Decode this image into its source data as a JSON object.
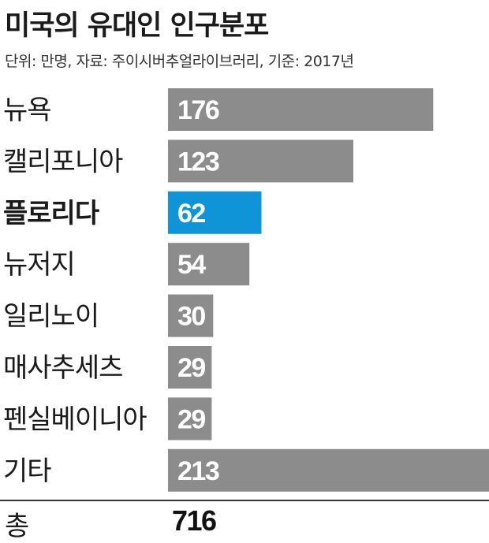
{
  "chart_data": {
    "type": "bar",
    "orientation": "horizontal",
    "title": "미국의 유대인 인구분포",
    "subtitle": "단위: 만명, 자료: 주이시버추얼라이브러리, 기준: 2017년",
    "categories": [
      "뉴욕",
      "캘리포니아",
      "플로리다",
      "뉴저지",
      "일리노이",
      "매사추세츠",
      "펜실베이니아",
      "기타"
    ],
    "values": [
      176,
      123,
      62,
      54,
      30,
      29,
      29,
      213
    ],
    "highlight_index": 2,
    "xlim": [
      0,
      213
    ],
    "grid": false,
    "legend": "none",
    "total_label": "총",
    "total_value": "716"
  },
  "colors": {
    "bar": "#8c8c8d",
    "highlight": "#0f95d7",
    "value_text": "#ffffff",
    "divider": "#333333"
  }
}
